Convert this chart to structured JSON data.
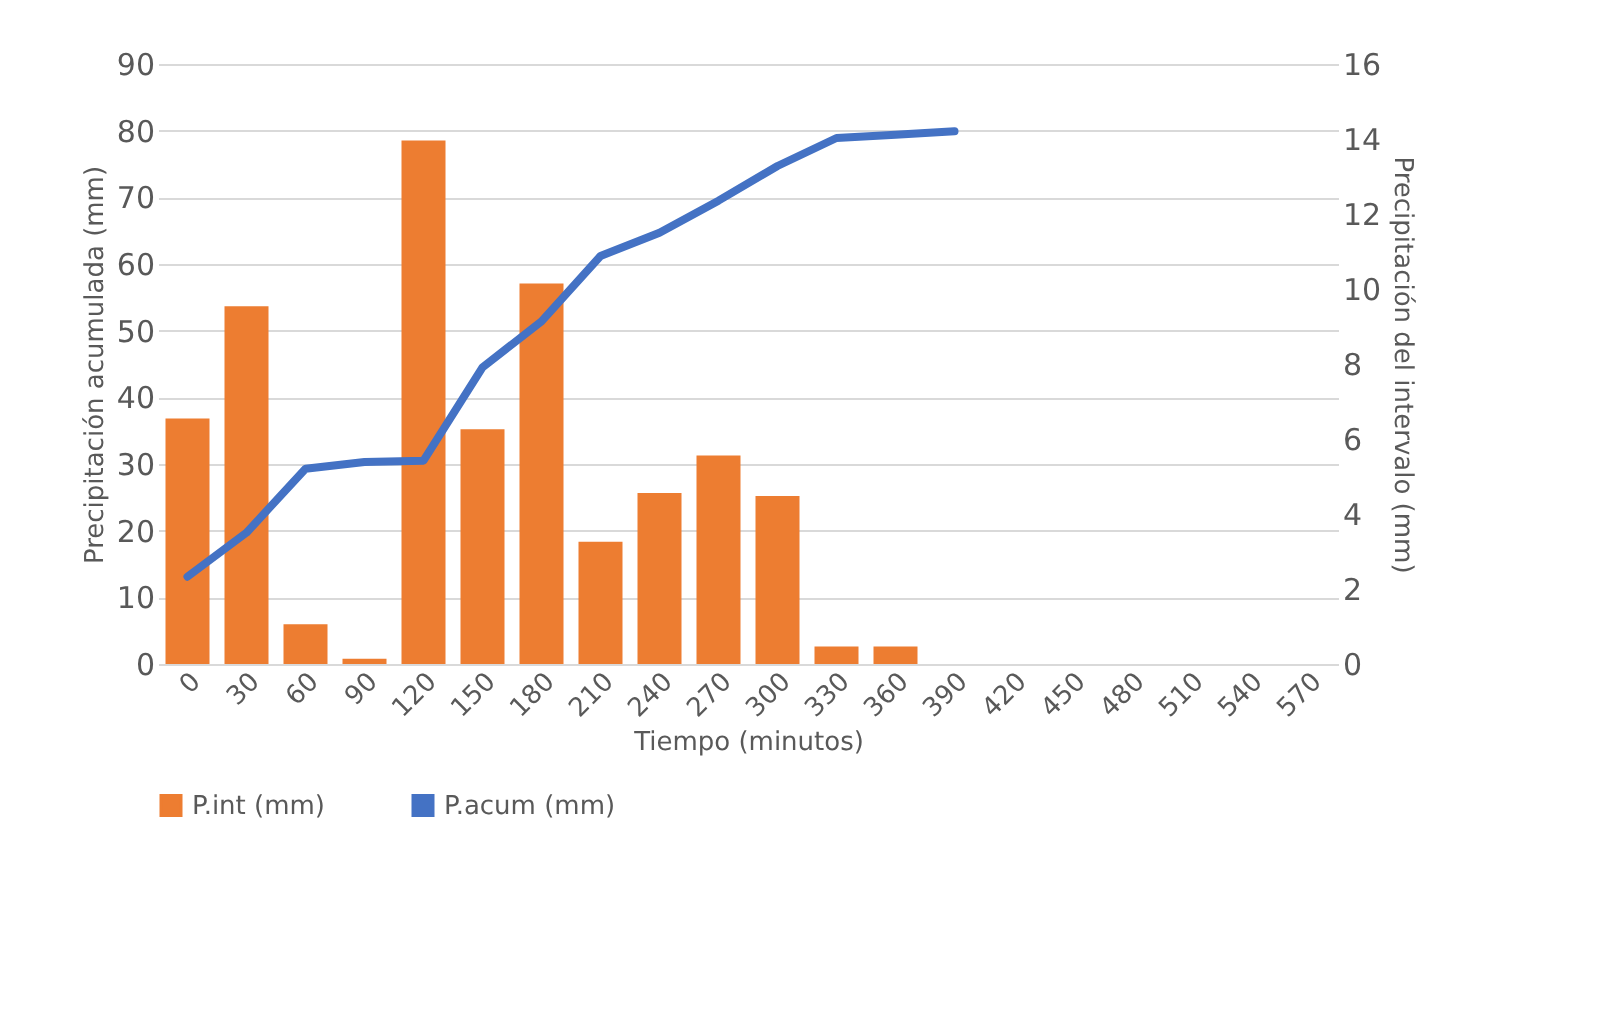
{
  "chart_data": {
    "type": "bar",
    "xlabel": "Tiempo (minutos)",
    "ylabel": "Precipitación acumulada (mm)",
    "y2label": "Precipitación del intervalo (mm)",
    "categories": [
      "0",
      "30",
      "60",
      "90",
      "120",
      "150",
      "180",
      "210",
      "240",
      "270",
      "300",
      "330",
      "360",
      "390",
      "420",
      "450",
      "480",
      "510",
      "540",
      "570"
    ],
    "series": [
      {
        "name": "P.int (mm)",
        "axis": "y2",
        "color": "#ed7d31",
        "values": [
          6.55,
          9.54,
          1.06,
          0.14,
          13.96,
          6.26,
          10.15,
          3.26,
          4.56,
          5.56,
          4.48,
          0.47,
          0.47,
          null,
          null,
          null,
          null,
          null,
          null,
          null
        ]
      },
      {
        "name": "P.acum (mm)",
        "type": "line",
        "color": "#4472c4",
        "values": [
          13.1,
          19.7,
          29.3,
          30.3,
          30.5,
          44.5,
          51.4,
          61.2,
          64.7,
          69.5,
          74.7,
          78.9,
          79.4,
          79.9,
          null,
          null,
          null,
          null,
          null,
          null
        ]
      }
    ],
    "ylim": [
      0,
      90
    ],
    "yticks": [
      0,
      10,
      20,
      30,
      40,
      50,
      60,
      70,
      80,
      90
    ],
    "y2lim": [
      0,
      16
    ],
    "y2ticks": [
      0,
      2,
      4,
      6,
      8,
      10,
      12,
      14,
      16
    ],
    "grid": "y",
    "legend": "bottom"
  }
}
